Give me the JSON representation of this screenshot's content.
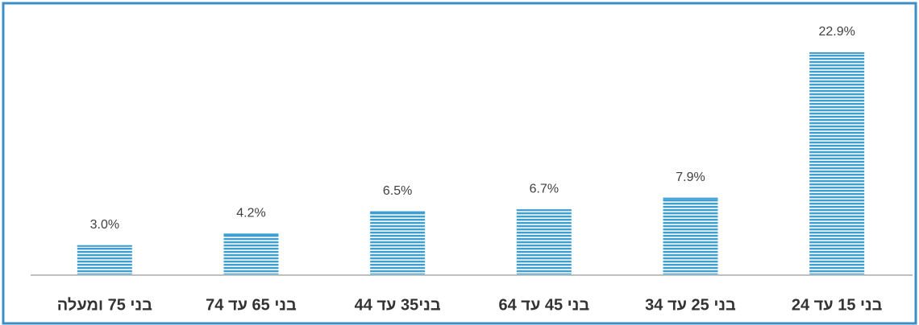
{
  "chart_data": {
    "type": "bar",
    "categories": [
      "בני 75 ומעלה",
      "בני 65 עד 74",
      "בני35  עד 44",
      "בני 45 עד 64",
      "בני 25 עד 34",
      "בני 15 עד 24"
    ],
    "values": [
      3.0,
      4.2,
      6.5,
      6.7,
      7.9,
      22.9
    ],
    "value_labels": [
      "3.0%",
      "4.2%",
      "6.5%",
      "6.7%",
      "7.9%",
      "22.9%"
    ],
    "color": "#3d9fd3"
  }
}
